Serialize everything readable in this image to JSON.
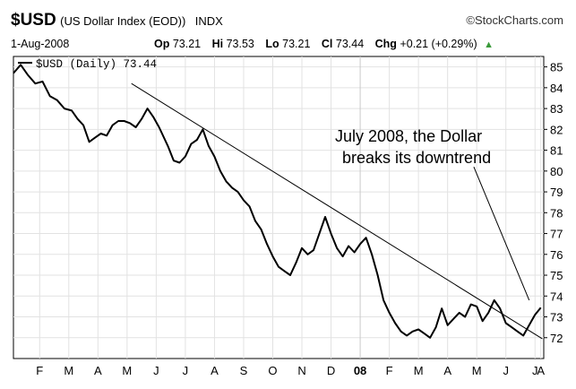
{
  "header": {
    "symbol": "$USD",
    "name": "(US Dollar Index (EOD))",
    "exchange": "INDX",
    "brand": "StockCharts.com",
    "date": "1-Aug-2008",
    "op_label": "Op",
    "op_value": "73.21",
    "hi_label": "Hi",
    "hi_value": "73.53",
    "lo_label": "Lo",
    "lo_value": "73.21",
    "cl_label": "Cl",
    "cl_value": "73.44",
    "chg_label": "Chg",
    "chg_value": "+0.21 (+0.29%)",
    "chg_icon": "triangle-up-icon",
    "brand_icon": "copyright-icon"
  },
  "chart_data": {
    "type": "line",
    "legend": "$USD (Daily) 73.44",
    "legend_placement": "top-left",
    "y_axis_side": "right",
    "ylim": [
      71,
      85.5
    ],
    "yticks": [
      72,
      73,
      74,
      75,
      76,
      77,
      78,
      79,
      80,
      81,
      82,
      83,
      84,
      85
    ],
    "xlim": [
      0,
      18.2
    ],
    "xticks": [
      {
        "label": "F",
        "x": 0.9
      },
      {
        "label": "M",
        "x": 1.9
      },
      {
        "label": "A",
        "x": 2.9
      },
      {
        "label": "M",
        "x": 3.9
      },
      {
        "label": "J",
        "x": 4.9
      },
      {
        "label": "J",
        "x": 5.9
      },
      {
        "label": "A",
        "x": 6.9
      },
      {
        "label": "S",
        "x": 7.9
      },
      {
        "label": "O",
        "x": 8.9
      },
      {
        "label": "N",
        "x": 9.9
      },
      {
        "label": "D",
        "x": 10.9
      },
      {
        "label": "08",
        "x": 11.9
      },
      {
        "label": "F",
        "x": 12.9
      },
      {
        "label": "M",
        "x": 13.9
      },
      {
        "label": "A",
        "x": 14.9
      },
      {
        "label": "M",
        "x": 15.9
      },
      {
        "label": "J",
        "x": 16.9
      },
      {
        "label": "J",
        "x": 17.9
      },
      {
        "label": "A",
        "x": 18.1
      }
    ],
    "grid": true,
    "series": [
      {
        "x": [
          0,
          0.25,
          0.5,
          0.75,
          1.0,
          1.25,
          1.5,
          1.75,
          2.0,
          2.2,
          2.4,
          2.6,
          2.8,
          3.0,
          3.2,
          3.4,
          3.6,
          3.8,
          4.0,
          4.2,
          4.4,
          4.6,
          4.8,
          5.0,
          5.1,
          5.3,
          5.5,
          5.7,
          5.9,
          6.1,
          6.3,
          6.5,
          6.7,
          6.9,
          7.1,
          7.3,
          7.5,
          7.7,
          7.9,
          8.1,
          8.3,
          8.5,
          8.7,
          8.9,
          9.1,
          9.3,
          9.5,
          9.7,
          9.9,
          10.1,
          10.3,
          10.5,
          10.7,
          10.9,
          11.1,
          11.3,
          11.5,
          11.7,
          11.9,
          12.1,
          12.3,
          12.5,
          12.7,
          12.9,
          13.1,
          13.3,
          13.5,
          13.7,
          13.9,
          14.1,
          14.3,
          14.5,
          14.7,
          14.9,
          15.1,
          15.3,
          15.5,
          15.7,
          15.9,
          16.1,
          16.3,
          16.5,
          16.7,
          16.9,
          17.1,
          17.3,
          17.5,
          17.7,
          17.9,
          18.1
        ],
        "values": [
          84.7,
          85.1,
          84.6,
          84.2,
          84.3,
          83.6,
          83.4,
          83.0,
          82.9,
          82.5,
          82.2,
          81.4,
          81.6,
          81.8,
          81.7,
          82.2,
          82.4,
          82.4,
          82.3,
          82.1,
          82.5,
          83.0,
          82.6,
          82.1,
          81.8,
          81.2,
          80.5,
          80.4,
          80.7,
          81.3,
          81.5,
          82.0,
          81.2,
          80.7,
          80.0,
          79.5,
          79.2,
          79.0,
          78.6,
          78.3,
          77.6,
          77.2,
          76.5,
          75.9,
          75.4,
          75.2,
          75.0,
          75.6,
          76.3,
          76.0,
          76.2,
          77.0,
          77.8,
          77.0,
          76.3,
          75.9,
          76.4,
          76.1,
          76.5,
          76.8,
          76.0,
          75.0,
          73.8,
          73.2,
          72.7,
          72.3,
          72.1,
          72.3,
          72.4,
          72.2,
          72.0,
          72.5,
          73.4,
          72.6,
          72.9,
          73.2,
          73.0,
          73.6,
          73.5,
          72.8,
          73.2,
          73.8,
          73.4,
          72.7,
          72.5,
          72.3,
          72.1,
          72.6,
          73.1,
          73.44
        ]
      }
    ],
    "trendline": {
      "x": [
        4.05,
        18.15
      ],
      "values": [
        84.2,
        71.95
      ]
    },
    "annotation": {
      "lines": [
        "July 2008, the Dollar",
        "breaks its downtrend"
      ],
      "arrow_from": [
        15.8,
        80.2
      ],
      "arrow_to": [
        17.7,
        73.8
      ]
    }
  }
}
